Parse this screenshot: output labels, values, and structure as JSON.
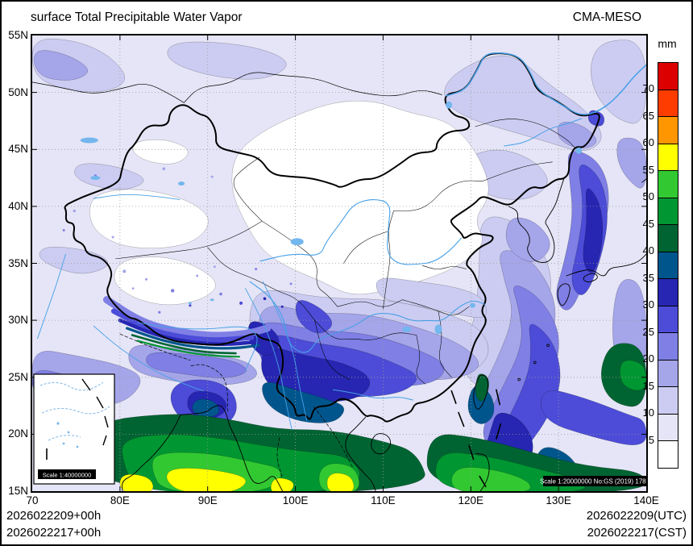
{
  "header": {
    "title": "surface Total Precipitable Water Vapor",
    "model": "CMA-MESO"
  },
  "colorbar": {
    "unit": "mm",
    "tick_labels": [
      "70",
      "65",
      "60",
      "55",
      "50",
      "45",
      "40",
      "35",
      "30",
      "25",
      "20",
      "15",
      "10",
      "5"
    ],
    "colors_top_to_bottom": [
      "#DC0000",
      "#FF3C00",
      "#FF9600",
      "#FFFF00",
      "#32C832",
      "#009632",
      "#006432",
      "#00568C",
      "#2626B2",
      "#4C4CD8",
      "#7F7FE5",
      "#A5A5EA",
      "#CCCCF2",
      "#E5E5F7",
      "#FFFFFF"
    ]
  },
  "axes": {
    "lat_ticks": [
      "55N",
      "50N",
      "45N",
      "40N",
      "35N",
      "30N",
      "25N",
      "20N",
      "15N"
    ],
    "lon_ticks": [
      "70",
      "80E",
      "90E",
      "100E",
      "110E",
      "120E",
      "130E",
      "140E"
    ]
  },
  "annotations": {
    "inset_scale": "Scale 1:40000000",
    "map_scale": "Scale 1:20000000 No:GS (2019) 1786"
  },
  "footer": {
    "init_utc": "2026022209+00h",
    "init_cst": "2026022217+00h",
    "valid_utc": "2026022209(UTC)",
    "valid_cst": "2026022217(CST)"
  },
  "chart_data": {
    "type": "heatmap",
    "title": "surface Total Precipitable Water Vapor",
    "units": "mm",
    "model": "CMA-MESO",
    "levels_mm": [
      5,
      10,
      15,
      20,
      25,
      30,
      35,
      40,
      45,
      50,
      55,
      60,
      65,
      70
    ],
    "palette_low_to_high": [
      "#FFFFFF",
      "#E5E5F7",
      "#CCCCF2",
      "#A5A5EA",
      "#7F7FE5",
      "#4C4CD8",
      "#2626B2",
      "#00568C",
      "#006432",
      "#009632",
      "#32C832",
      "#FFFF00",
      "#FF9600",
      "#FF3C00",
      "#DC0000"
    ],
    "x_axis": {
      "label": "longitude",
      "ticks": [
        "70",
        "80E",
        "90E",
        "100E",
        "110E",
        "120E",
        "130E",
        "140E"
      ],
      "range_deg": [
        70,
        140
      ]
    },
    "y_axis": {
      "label": "latitude",
      "ticks": [
        "15N",
        "20N",
        "25N",
        "30N",
        "35N",
        "40N",
        "45N",
        "50N",
        "55N"
      ],
      "range_deg": [
        15,
        55
      ]
    },
    "grid": "dotted gridlines every 10 deg lon x 5 deg lat",
    "legend_position": "right",
    "notable_features": [
      "dry air (<5 mm) over Mongolia, north-central China, Tarim Basin and interior Tibetan Plateau",
      "5-20 mm over northern China, northeast China and mid-latitude seas",
      "25-40 mm band across southern China near 24-30N and along east Asian seas",
      "40-55 mm tropical moisture over Indochina, Bay of Bengal and western Pacific south of 20N",
      "yellow cores >55 mm near 15-17N"
    ]
  }
}
